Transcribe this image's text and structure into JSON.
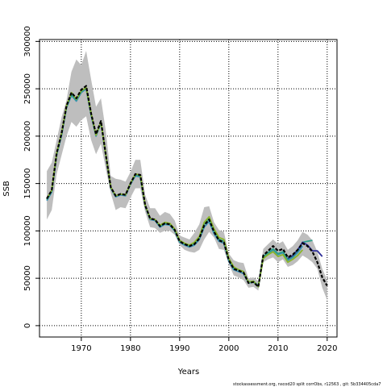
{
  "chart_data": {
    "type": "line",
    "title": "",
    "xlabel": "Years",
    "ylabel": "SSB",
    "xlim": [
      1961.5,
      2022
    ],
    "ylim": [
      -12000,
      302000
    ],
    "x_ticks": [
      1970,
      1980,
      1990,
      2000,
      2010,
      2020
    ],
    "y_ticks": [
      0,
      50000,
      100000,
      150000,
      200000,
      250000,
      300000
    ],
    "grid": true,
    "grid_style": "dotted",
    "band": {
      "color": "#bebebe",
      "x": [
        1963,
        1964,
        1965,
        1966,
        1967,
        1968,
        1969,
        1970,
        1971,
        1972,
        1973,
        1974,
        1975,
        1976,
        1977,
        1978,
        1979,
        1980,
        1981,
        1982,
        1983,
        1984,
        1985,
        1986,
        1987,
        1988,
        1989,
        1990,
        1991,
        1992,
        1993,
        1994,
        1995,
        1996,
        1997,
        1998,
        1999,
        2000,
        2001,
        2002,
        2003,
        2004,
        2005,
        2006,
        2007,
        2008,
        2009,
        2010,
        2011,
        2012,
        2013,
        2014,
        2015,
        2016,
        2017,
        2018,
        2019,
        2020
      ],
      "lower": [
        112000,
        122000,
        160000,
        180000,
        200000,
        215000,
        210000,
        217000,
        221000,
        196000,
        181000,
        192000,
        165000,
        140000,
        122000,
        125000,
        124000,
        135000,
        145000,
        145000,
        120000,
        104000,
        103000,
        98000,
        100000,
        100000,
        96000,
        85000,
        80000,
        78000,
        77000,
        80000,
        91000,
        99000,
        93000,
        81000,
        80000,
        65000,
        53000,
        51000,
        48000,
        40000,
        41000,
        37000,
        67000,
        70000,
        72000,
        67000,
        70000,
        62000,
        64000,
        68000,
        74000,
        71000,
        67000,
        60000,
        40000,
        27000
      ],
      "upper": [
        163000,
        172000,
        196000,
        220000,
        238000,
        268000,
        281000,
        275000,
        290000,
        260000,
        231000,
        240000,
        205000,
        158000,
        155000,
        154000,
        152000,
        162000,
        175000,
        175000,
        138000,
        124000,
        124000,
        116000,
        120000,
        118000,
        111000,
        95000,
        93000,
        91000,
        98000,
        107000,
        125000,
        126000,
        109000,
        101000,
        99000,
        76000,
        69000,
        67000,
        66000,
        50000,
        51000,
        47000,
        81000,
        86000,
        91000,
        86000,
        89000,
        80000,
        84000,
        90000,
        99000,
        96000,
        90000,
        78000,
        60000,
        48000
      ]
    },
    "series": [
      {
        "color": "#000000",
        "dashed": true,
        "x": [
          1963,
          1964,
          1965,
          1966,
          1967,
          1968,
          1969,
          1970,
          1971,
          1972,
          1973,
          1974,
          1975,
          1976,
          1977,
          1978,
          1979,
          1980,
          1981,
          1982,
          1983,
          1984,
          1985,
          1986,
          1987,
          1988,
          1989,
          1990,
          1991,
          1992,
          1993,
          1994,
          1995,
          1996,
          1997,
          1998,
          1999,
          2000,
          2001,
          2002,
          2003,
          2004,
          2005,
          2006,
          2007,
          2008,
          2009,
          2010,
          2011,
          2012,
          2013,
          2014,
          2015,
          2016,
          2017,
          2018,
          2019,
          2020
        ],
        "values": [
          134000,
          143000,
          182000,
          203000,
          232000,
          246000,
          240000,
          249000,
          253000,
          224000,
          202000,
          216000,
          180000,
          146000,
          137000,
          139000,
          138000,
          150000,
          160000,
          159000,
          127000,
          113000,
          112000,
          105000,
          108000,
          107000,
          101000,
          89000,
          86000,
          84000,
          86000,
          92000,
          106000,
          112000,
          99000,
          90000,
          88000,
          69000,
          60000,
          58000,
          56000,
          45000,
          46000,
          41000,
          74000,
          79000,
          84000,
          79000,
          81000,
          72000,
          75000,
          80000,
          87000,
          84000,
          78000,
          67000,
          51000,
          42000
        ]
      },
      {
        "color": "#3a8fb7",
        "dashed": false,
        "x": [
          1963,
          1964,
          1965,
          1966,
          1967,
          1968,
          1969,
          1970,
          1971,
          1972,
          1973,
          1974,
          1975,
          1976,
          1977,
          1978,
          1979,
          1980,
          1981,
          1982,
          1983,
          1984,
          1985,
          1986,
          1987,
          1988,
          1989,
          1990,
          1991,
          1992,
          1993,
          1994,
          1995,
          1996,
          1997,
          1998,
          1999,
          2000,
          2001,
          2002,
          2003,
          2004,
          2005,
          2006,
          2007,
          2008,
          2009,
          2010,
          2011,
          2012,
          2013,
          2014,
          2015
        ],
        "values": [
          132000,
          141000,
          180000,
          201000,
          230000,
          243000,
          237000,
          246000,
          250000,
          222000,
          200000,
          214000,
          179000,
          145000,
          136000,
          138000,
          137000,
          149000,
          158000,
          157000,
          126000,
          112000,
          111000,
          104000,
          107000,
          106000,
          100000,
          88000,
          85000,
          83000,
          85000,
          91000,
          104000,
          110000,
          97000,
          89000,
          87000,
          68000,
          59000,
          57000,
          55000,
          45000,
          46000,
          41000,
          72000,
          76000,
          80000,
          75000,
          77000,
          69000,
          72000,
          77000,
          84000
        ]
      },
      {
        "color": "#2ca08a",
        "dashed": false,
        "x": [
          1963,
          1964,
          1965,
          1966,
          1967,
          1968,
          1969,
          1970,
          1971,
          1972,
          1973,
          1974,
          1975,
          1976,
          1977,
          1978,
          1979,
          1980,
          1981,
          1982,
          1983,
          1984,
          1985,
          1986,
          1987,
          1988,
          1989,
          1990,
          1991,
          1992,
          1993,
          1994,
          1995,
          1996,
          1997,
          1998,
          1999,
          2000,
          2001,
          2002,
          2003,
          2004,
          2005,
          2006,
          2007,
          2008,
          2009,
          2010,
          2011,
          2012,
          2013,
          2014,
          2015,
          2016,
          2017
        ],
        "values": [
          133000,
          142000,
          181000,
          202000,
          231000,
          244000,
          238000,
          247000,
          251000,
          223000,
          201000,
          215000,
          180000,
          146000,
          137000,
          139000,
          138000,
          150000,
          159000,
          158000,
          127000,
          113000,
          112000,
          105000,
          108000,
          107000,
          101000,
          89000,
          86000,
          84000,
          87000,
          93000,
          107000,
          113000,
          100000,
          91000,
          89000,
          70000,
          61000,
          59000,
          57000,
          46000,
          47000,
          42000,
          73000,
          77000,
          81000,
          76000,
          78000,
          70000,
          73000,
          79000,
          88000,
          89000,
          90000
        ]
      },
      {
        "color": "#30309a",
        "dashed": false,
        "x": [
          2012,
          2013,
          2014,
          2015,
          2016,
          2017,
          2018,
          2019
        ],
        "values": [
          71000,
          74000,
          80000,
          88000,
          85000,
          79000,
          79000,
          73000
        ]
      },
      {
        "color": "#8ab52a",
        "dashed": false,
        "x": [
          1963,
          1964,
          1965,
          1966,
          1967,
          1968,
          1969,
          1970,
          1971,
          1972,
          1973,
          1974,
          1975,
          1976,
          1977,
          1978,
          1979,
          1980,
          1981,
          1982,
          1983,
          1984,
          1985,
          1986,
          1987,
          1988,
          1989,
          1990,
          1991,
          1992,
          1993,
          1994,
          1995,
          1996,
          1997,
          1998,
          1999,
          2000,
          2001,
          2002,
          2003,
          2004,
          2005,
          2006,
          2007,
          2008,
          2009,
          2010,
          2011,
          2012,
          2013,
          2014,
          2015
        ],
        "values": [
          134000,
          143000,
          182000,
          203000,
          232000,
          246000,
          239000,
          248000,
          251000,
          224000,
          201000,
          215000,
          180000,
          146000,
          137000,
          139000,
          138000,
          150000,
          160000,
          159000,
          127000,
          113000,
          112000,
          106000,
          109000,
          108000,
          102000,
          90000,
          87000,
          85000,
          88000,
          94000,
          109000,
          115000,
          102000,
          93000,
          91000,
          71000,
          62000,
          59000,
          57000,
          46000,
          47000,
          41000,
          71000,
          75000,
          78000,
          73000,
          75000,
          67000,
          70000,
          74000,
          80000
        ]
      }
    ]
  },
  "footnote": "stockassessment.org, nscod20 split corrObs, r12563 , git: 5b334405cda7"
}
